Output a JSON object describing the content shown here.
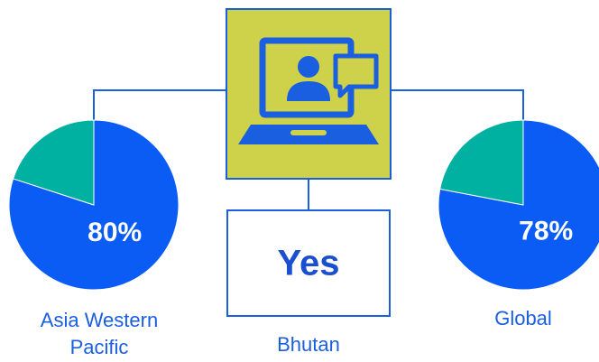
{
  "chart_data": [
    {
      "type": "pie",
      "title": "Asia Western Pacific",
      "values": [
        80,
        20
      ],
      "value_labels": [
        "80%",
        null
      ],
      "colors": [
        "#0a5cf5",
        "#00b0a0"
      ]
    },
    {
      "type": "pie",
      "title": "Global",
      "values": [
        78,
        22
      ],
      "value_labels": [
        "78%",
        null
      ],
      "colors": [
        "#0a5cf5",
        "#00b0a0"
      ]
    }
  ],
  "center": {
    "value": "Yes",
    "label": "Bhutan"
  }
}
